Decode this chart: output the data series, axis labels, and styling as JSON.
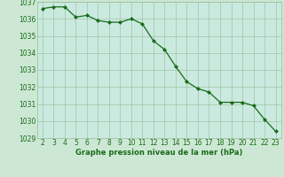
{
  "x": [
    2,
    3,
    4,
    5,
    6,
    7,
    8,
    9,
    10,
    11,
    12,
    13,
    14,
    15,
    16,
    17,
    18,
    19,
    20,
    21,
    22,
    23
  ],
  "y": [
    1036.6,
    1036.7,
    1036.7,
    1036.1,
    1036.2,
    1035.9,
    1035.8,
    1035.8,
    1036.0,
    1035.7,
    1034.7,
    1034.2,
    1033.2,
    1032.3,
    1031.9,
    1031.7,
    1031.1,
    1031.1,
    1031.1,
    1030.9,
    1030.1,
    1029.4
  ],
  "line_color": "#1a6b1a",
  "marker": "D",
  "marker_size": 2.0,
  "line_width": 0.9,
  "bg_color": "#cce8d4",
  "plot_bg_color": "#caeae0",
  "grid_color": "#99bb99",
  "xlabel": "Graphe pression niveau de la mer (hPa)",
  "xlabel_fontsize": 6.0,
  "tick_fontsize": 5.5,
  "xlim": [
    1.5,
    23.5
  ],
  "ylim": [
    1029,
    1037
  ],
  "yticks": [
    1029,
    1030,
    1031,
    1032,
    1033,
    1034,
    1035,
    1036,
    1037
  ]
}
